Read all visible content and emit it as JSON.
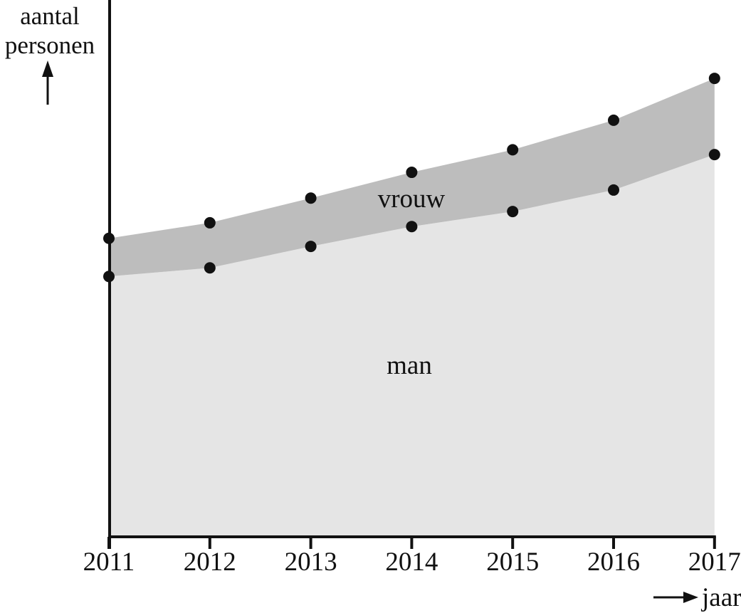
{
  "colors": {
    "ink": "#111111",
    "area_man": "#e5e5e5",
    "area_vrouw": "#bdbdbd",
    "background": "#ffffff"
  },
  "labels": {
    "y_axis_line1": "aantal",
    "y_axis_line2": "personen",
    "x_axis": "jaar"
  },
  "chart_data": {
    "type": "area",
    "stacked": true,
    "title": "",
    "categories": [
      "2011",
      "2012",
      "2013",
      "2014",
      "2015",
      "2016",
      "2017"
    ],
    "series": [
      {
        "name": "man",
        "values": [
          48.5,
          50.1,
          54.1,
          57.8,
          60.6,
          64.6,
          71.2
        ],
        "color": "#e5e5e5"
      },
      {
        "name": "vrouw",
        "values": [
          7.1,
          8.4,
          9.0,
          10.1,
          11.5,
          13.0,
          14.2
        ],
        "color": "#bdbdbd"
      }
    ],
    "stacked_totals": [
      55.6,
      58.5,
      63.1,
      67.9,
      72.1,
      77.6,
      85.4
    ],
    "xlabel": "jaar",
    "ylabel": "aantal personen",
    "ylim": [
      0,
      100
    ],
    "units": "relative units; y-axis shows no numeric scale (100 = full axis height)",
    "markers": {
      "shape": "dot",
      "color": "#111111",
      "on": "both boundaries (man line and total line) at every year"
    },
    "legend_position": "labels drawn inside the areas",
    "grid": false
  }
}
